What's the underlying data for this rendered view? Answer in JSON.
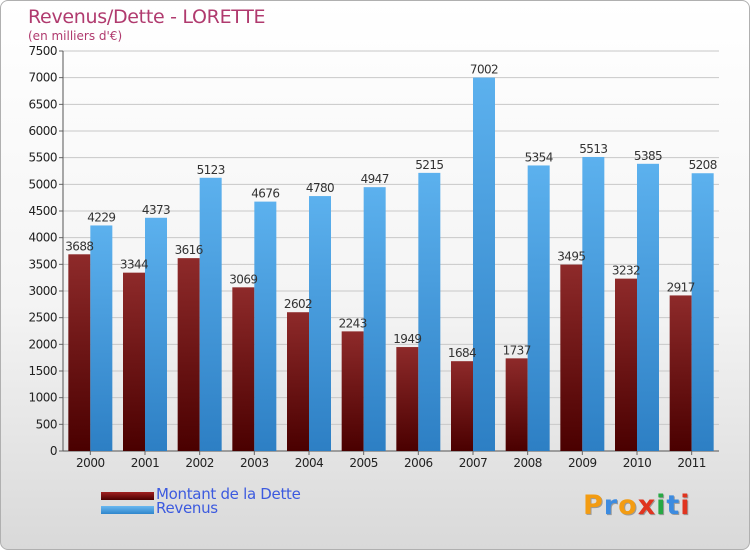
{
  "chart_data": {
    "type": "bar",
    "title": "Revenus/Dette - LORETTE",
    "subtitle": "(en milliers d'€)",
    "categories": [
      "2000",
      "2001",
      "2002",
      "2003",
      "2004",
      "2005",
      "2006",
      "2007",
      "2008",
      "2009",
      "2010",
      "2011"
    ],
    "series": [
      {
        "name": "Montant de la Dette",
        "color": "#8b1a1a",
        "values": [
          3688,
          3344,
          3616,
          3069,
          2602,
          2243,
          1949,
          1684,
          1737,
          3495,
          3232,
          2917
        ],
        "labels": [
          "3688",
          "3344",
          "3616",
          "3069",
          "2602",
          "2243",
          "1949",
          "1684",
          "1737",
          "3495",
          "3232",
          "2917"
        ]
      },
      {
        "name": "Revenus",
        "color": "#4ba3e2",
        "values": [
          4229,
          4373,
          5123,
          4676,
          4780,
          4947,
          5215,
          7002,
          5354,
          5513,
          5385,
          5208
        ],
        "labels": [
          "4229",
          "4373",
          "5123",
          "4676",
          "4780",
          "4947",
          "5215",
          "7002",
          "5354",
          "5513",
          "5385",
          "5208"
        ]
      }
    ],
    "ylim": [
      0,
      7500
    ],
    "yticks": [
      "0",
      "500",
      "1000",
      "1500",
      "2000",
      "2500",
      "3000",
      "3500",
      "4000",
      "4500",
      "5000",
      "5500",
      "6000",
      "6500",
      "7000",
      "7500"
    ],
    "grid": true,
    "legend_position": "bottom-left"
  },
  "logo": {
    "letters": [
      "P",
      "r",
      "o",
      "x",
      "i",
      "t",
      "i"
    ],
    "colors": [
      "#f39c12",
      "#3c8be0",
      "#f39c12",
      "#e0341f",
      "#27a844",
      "#3c8be0",
      "#e0341f"
    ]
  }
}
